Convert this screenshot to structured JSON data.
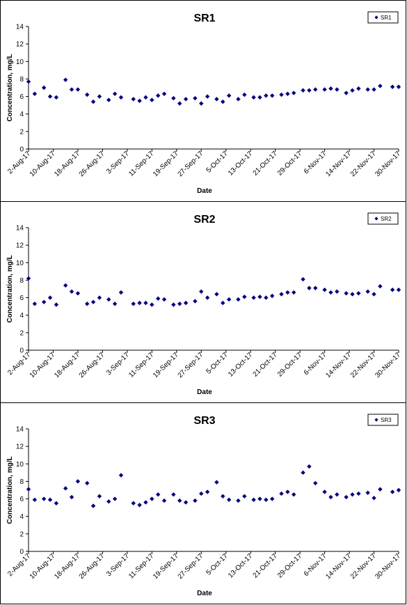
{
  "chart_data": [
    {
      "type": "scatter",
      "title": "SR1",
      "xlabel": "Date",
      "ylabel": "Concentration, mg/L",
      "ylim": [
        0,
        14
      ],
      "yticks": [
        0,
        2,
        4,
        6,
        8,
        10,
        12,
        14
      ],
      "xlim": [
        "2017-08-02",
        "2017-11-30"
      ],
      "x_tick_labels": [
        "2-Aug-17",
        "10-Aug-17",
        "18-Aug-17",
        "26-Aug-17",
        "3-Sep-17",
        "11-Sep-17",
        "19-Sep-17",
        "27-Sep-17",
        "5-Oct-17",
        "13-Oct-17",
        "21-Oct-17",
        "29-Oct-17",
        "6-Nov-17",
        "14-Nov-17",
        "22-Nov-17",
        "30-Nov-17"
      ],
      "grid": false,
      "legend": "top-right",
      "marker_color": "#00007f",
      "series": [
        {
          "name": "SR1",
          "x": [
            "2017-08-02",
            "2017-08-04",
            "2017-08-07",
            "2017-08-09",
            "2017-08-11",
            "2017-08-14",
            "2017-08-16",
            "2017-08-18",
            "2017-08-21",
            "2017-08-23",
            "2017-08-25",
            "2017-08-28",
            "2017-08-30",
            "2017-09-01",
            "2017-09-05",
            "2017-09-07",
            "2017-09-09",
            "2017-09-11",
            "2017-09-13",
            "2017-09-15",
            "2017-09-18",
            "2017-09-20",
            "2017-09-22",
            "2017-09-25",
            "2017-09-27",
            "2017-09-29",
            "2017-10-02",
            "2017-10-04",
            "2017-10-06",
            "2017-10-09",
            "2017-10-11",
            "2017-10-14",
            "2017-10-16",
            "2017-10-18",
            "2017-10-20",
            "2017-10-23",
            "2017-10-25",
            "2017-10-27",
            "2017-10-30",
            "2017-11-01",
            "2017-11-03",
            "2017-11-06",
            "2017-11-08",
            "2017-11-10",
            "2017-11-13",
            "2017-11-15",
            "2017-11-17",
            "2017-11-20",
            "2017-11-22",
            "2017-11-24",
            "2017-11-28",
            "2017-11-30"
          ],
          "values": [
            7.7,
            6.3,
            7.0,
            6.0,
            5.9,
            7.9,
            6.8,
            6.8,
            6.2,
            5.4,
            6.0,
            5.6,
            6.3,
            5.9,
            5.7,
            5.5,
            5.9,
            5.6,
            6.1,
            6.3,
            5.8,
            5.2,
            5.7,
            5.8,
            5.2,
            6.0,
            5.7,
            5.4,
            6.1,
            5.7,
            6.2,
            5.9,
            5.9,
            6.1,
            6.1,
            6.2,
            6.3,
            6.4,
            6.7,
            6.7,
            6.8,
            6.8,
            6.9,
            6.8,
            6.4,
            6.7,
            6.9,
            6.8,
            6.8,
            7.2,
            7.1,
            7.1
          ]
        }
      ]
    },
    {
      "type": "scatter",
      "title": "SR2",
      "xlabel": "Date",
      "ylabel": "Concentration, mg/L",
      "ylim": [
        0,
        14
      ],
      "yticks": [
        0,
        2,
        4,
        6,
        8,
        10,
        12,
        14
      ],
      "xlim": [
        "2017-08-02",
        "2017-11-30"
      ],
      "x_tick_labels": [
        "2-Aug-17",
        "10-Aug-17",
        "18-Aug-17",
        "26-Aug-17",
        "3-Sep-17",
        "11-Sep-17",
        "19-Sep-17",
        "27-Sep-17",
        "5-Oct-17",
        "13-Oct-17",
        "21-Oct-17",
        "29-Oct-17",
        "6-Nov-17",
        "14-Nov-17",
        "22-Nov-17",
        "30-Nov-17"
      ],
      "grid": false,
      "legend": "top-right",
      "marker_color": "#00007f",
      "series": [
        {
          "name": "SR2",
          "x": [
            "2017-08-02",
            "2017-08-04",
            "2017-08-07",
            "2017-08-09",
            "2017-08-11",
            "2017-08-14",
            "2017-08-16",
            "2017-08-18",
            "2017-08-21",
            "2017-08-23",
            "2017-08-25",
            "2017-08-28",
            "2017-08-30",
            "2017-09-01",
            "2017-09-05",
            "2017-09-07",
            "2017-09-09",
            "2017-09-11",
            "2017-09-13",
            "2017-09-15",
            "2017-09-18",
            "2017-09-20",
            "2017-09-22",
            "2017-09-25",
            "2017-09-27",
            "2017-09-29",
            "2017-10-02",
            "2017-10-04",
            "2017-10-06",
            "2017-10-09",
            "2017-10-11",
            "2017-10-14",
            "2017-10-16",
            "2017-10-18",
            "2017-10-20",
            "2017-10-23",
            "2017-10-25",
            "2017-10-27",
            "2017-10-30",
            "2017-11-01",
            "2017-11-03",
            "2017-11-06",
            "2017-11-08",
            "2017-11-10",
            "2017-11-13",
            "2017-11-15",
            "2017-11-17",
            "2017-11-20",
            "2017-11-22",
            "2017-11-24",
            "2017-11-28",
            "2017-11-30"
          ],
          "values": [
            8.2,
            5.3,
            5.5,
            6.0,
            5.2,
            7.4,
            6.7,
            6.5,
            5.3,
            5.5,
            6.0,
            5.8,
            5.3,
            6.6,
            5.3,
            5.4,
            5.4,
            5.2,
            5.9,
            5.8,
            5.2,
            5.3,
            5.4,
            5.6,
            6.7,
            6.0,
            6.4,
            5.4,
            5.8,
            5.8,
            6.1,
            6.0,
            6.1,
            6.0,
            6.2,
            6.4,
            6.6,
            6.6,
            8.1,
            7.1,
            7.1,
            6.9,
            6.6,
            6.7,
            6.5,
            6.4,
            6.5,
            6.7,
            6.4,
            7.3,
            6.9,
            6.9
          ]
        }
      ]
    },
    {
      "type": "scatter",
      "title": "SR3",
      "xlabel": "Date",
      "ylabel": "Concentration, mg/L",
      "ylim": [
        0,
        14
      ],
      "yticks": [
        0,
        2,
        4,
        6,
        8,
        10,
        12,
        14
      ],
      "xlim": [
        "2017-08-02",
        "2017-11-30"
      ],
      "x_tick_labels": [
        "2-Aug-17",
        "10-Aug-17",
        "18-Aug-17",
        "26-Aug-17",
        "3-Sep-17",
        "11-Sep-17",
        "19-Sep-17",
        "27-Sep-17",
        "5-Oct-17",
        "13-Oct-17",
        "21-Oct-17",
        "29-Oct-17",
        "6-Nov-17",
        "14-Nov-17",
        "22-Nov-17",
        "30-Nov-17"
      ],
      "grid": false,
      "legend": "top-right",
      "marker_color": "#00007f",
      "series": [
        {
          "name": "SR3",
          "x": [
            "2017-08-02",
            "2017-08-04",
            "2017-08-07",
            "2017-08-09",
            "2017-08-11",
            "2017-08-14",
            "2017-08-16",
            "2017-08-18",
            "2017-08-21",
            "2017-08-23",
            "2017-08-25",
            "2017-08-28",
            "2017-08-30",
            "2017-09-01",
            "2017-09-05",
            "2017-09-07",
            "2017-09-09",
            "2017-09-11",
            "2017-09-13",
            "2017-09-15",
            "2017-09-18",
            "2017-09-20",
            "2017-09-22",
            "2017-09-25",
            "2017-09-27",
            "2017-09-29",
            "2017-10-02",
            "2017-10-04",
            "2017-10-06",
            "2017-10-09",
            "2017-10-11",
            "2017-10-14",
            "2017-10-16",
            "2017-10-18",
            "2017-10-20",
            "2017-10-23",
            "2017-10-25",
            "2017-10-27",
            "2017-10-30",
            "2017-11-01",
            "2017-11-03",
            "2017-11-06",
            "2017-11-08",
            "2017-11-10",
            "2017-11-13",
            "2017-11-15",
            "2017-11-17",
            "2017-11-20",
            "2017-11-22",
            "2017-11-24",
            "2017-11-28",
            "2017-11-30"
          ],
          "values": [
            7.1,
            5.9,
            6.0,
            5.9,
            5.5,
            7.2,
            6.2,
            8.0,
            7.8,
            5.2,
            6.3,
            5.7,
            6.0,
            8.7,
            5.5,
            5.3,
            5.6,
            6.0,
            6.5,
            5.8,
            6.5,
            5.8,
            5.6,
            5.8,
            6.6,
            6.8,
            7.9,
            6.3,
            5.9,
            5.8,
            6.3,
            5.9,
            6.0,
            5.9,
            6.0,
            6.6,
            6.8,
            6.5,
            9.0,
            9.7,
            7.8,
            6.8,
            6.2,
            6.5,
            6.2,
            6.5,
            6.6,
            6.7,
            6.1,
            7.1,
            6.8,
            7.0
          ]
        }
      ]
    }
  ]
}
